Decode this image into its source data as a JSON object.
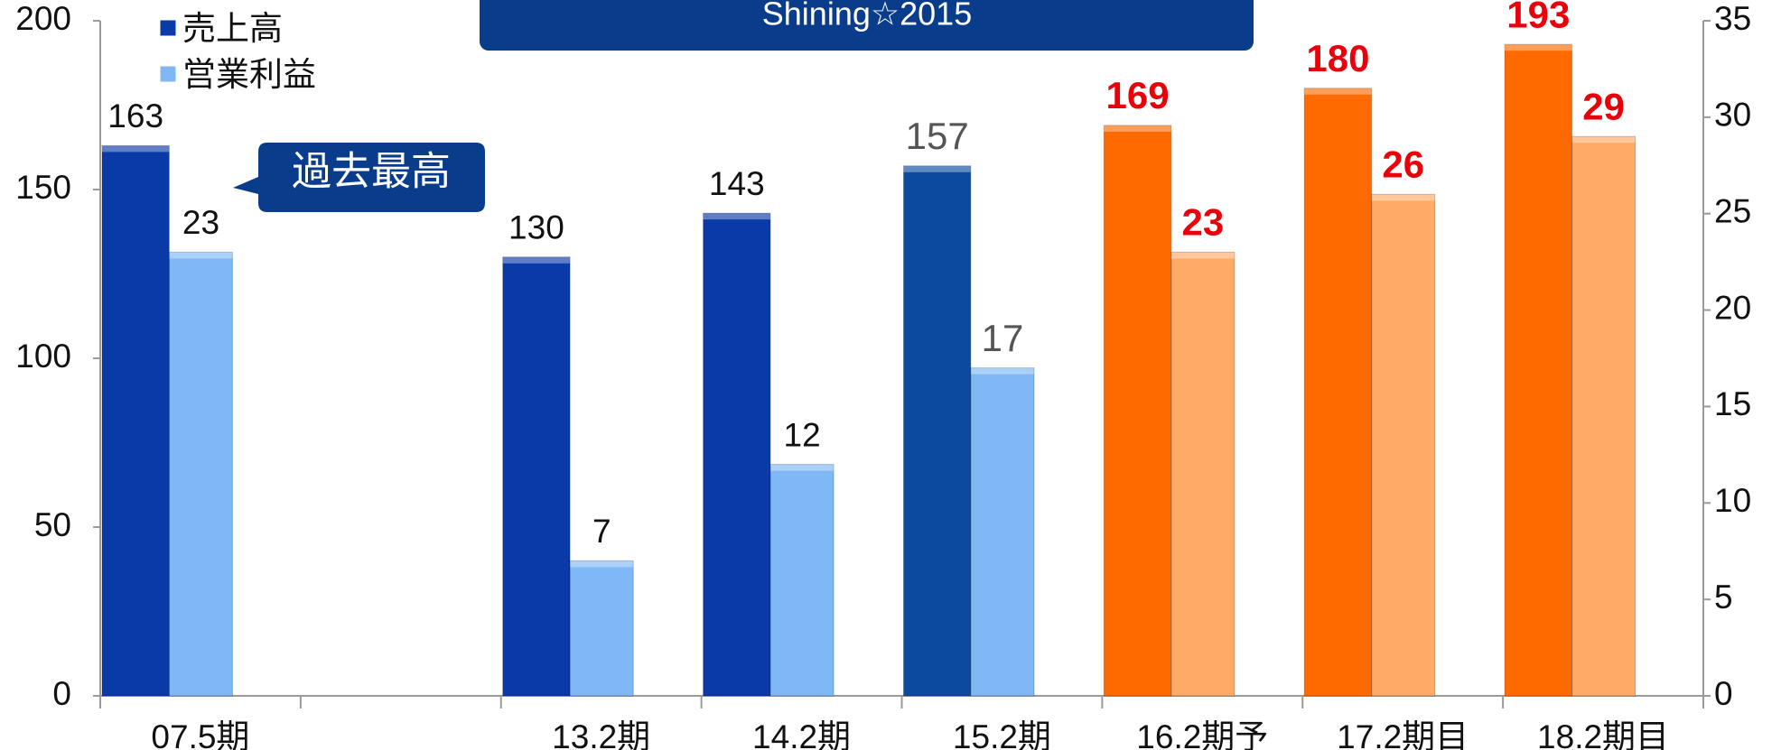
{
  "chart_data": {
    "type": "bar",
    "title": "Shining☆2015",
    "annotations": [
      "過去最高"
    ],
    "categories": [
      "07.5期",
      null,
      "13.2期",
      "14.2期",
      "15.2期",
      "16.2期予",
      "17.2期目",
      "18.2期目"
    ],
    "series": [
      {
        "name": "売上高",
        "color": "#0a3aa8",
        "axis": "y",
        "colors": [
          "#0a3aa8",
          null,
          "#0a3aa8",
          "#0a3aa8",
          "#0b4a9e",
          "#ff6a00",
          "#ff6a00",
          "#ff6a00"
        ],
        "label_colors": [
          "#111",
          null,
          "#111",
          "#111",
          "#555",
          "#e8000b",
          "#e8000b",
          "#e8000b"
        ],
        "values": [
          163,
          null,
          130,
          143,
          157,
          169,
          180,
          193
        ]
      },
      {
        "name": "営業利益",
        "color": "#7fb8f5",
        "axis": "y2",
        "colors": [
          "#7fb8f5",
          null,
          "#7fb8f5",
          "#7fb8f5",
          "#7fb8f5",
          "#ffaa66",
          "#ffaa66",
          "#ffaa66"
        ],
        "label_colors": [
          "#111",
          null,
          "#111",
          "#111",
          "#555",
          "#e8000b",
          "#e8000b",
          "#e8000b"
        ],
        "values": [
          23,
          null,
          7,
          12,
          17,
          23,
          26,
          29
        ]
      }
    ],
    "bold_labels": [
      false,
      false,
      false,
      false,
      false,
      true,
      true,
      true
    ],
    "ylim": [
      0,
      200
    ],
    "yticks": [
      0,
      50,
      100,
      150,
      200
    ],
    "y2lim": [
      0,
      35
    ],
    "y2ticks": [
      0,
      5,
      10,
      15,
      20,
      25,
      30,
      35
    ]
  }
}
